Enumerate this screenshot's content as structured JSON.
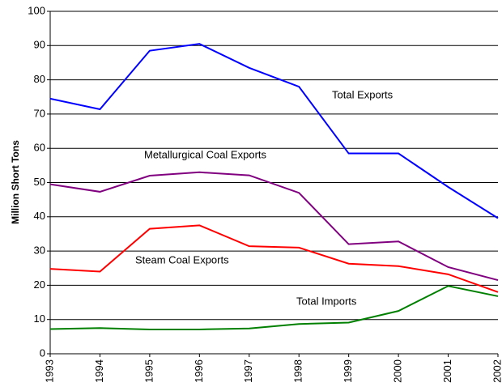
{
  "chart_data": {
    "type": "line",
    "y_label": "Million Short Tons",
    "x": [
      1993,
      1994,
      1995,
      1996,
      1997,
      1998,
      1999,
      2000,
      2001,
      2002
    ],
    "xlim": [
      1993,
      2002
    ],
    "xticks": [
      1993,
      1994,
      1995,
      1996,
      1997,
      1998,
      1999,
      2000,
      2001,
      2002
    ],
    "ylim": [
      0,
      100
    ],
    "yticks": [
      0,
      10,
      20,
      30,
      40,
      50,
      60,
      70,
      80,
      90,
      100
    ],
    "grid": true,
    "series": [
      {
        "name": "Total Exports",
        "color": "#0000ff",
        "values": [
          74.5,
          71.4,
          88.5,
          90.5,
          83.5,
          78,
          58.5,
          58.5,
          48.7,
          39.6
        ]
      },
      {
        "name": "Metallurgical Coal Exports",
        "color": "#800080",
        "values": [
          49.5,
          47.3,
          52,
          53,
          52.1,
          47,
          32,
          32.8,
          25.3,
          21.5
        ]
      },
      {
        "name": "Steam Coal Exports",
        "color": "#ff0000",
        "values": [
          24.8,
          24,
          36.5,
          37.5,
          31.4,
          31,
          26.3,
          25.6,
          23.2,
          18
        ]
      },
      {
        "name": "Total Imports",
        "color": "#008000",
        "values": [
          7.2,
          7.5,
          7.1,
          7.1,
          7.4,
          8.7,
          9.1,
          12.5,
          19.8,
          16.8
        ]
      }
    ]
  }
}
